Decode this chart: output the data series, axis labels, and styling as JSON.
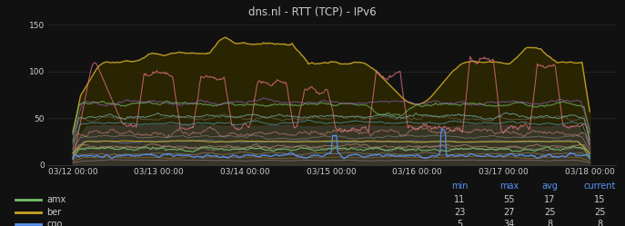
{
  "title": "dns.nl - RTT (TCP) - IPv6",
  "background_color": "#111111",
  "plot_bg_color": "#111111",
  "x_labels": [
    "03/12 00:00",
    "03/13 00:00",
    "03/14 00:00",
    "03/15 00:00",
    "03/16 00:00",
    "03/17 00:00",
    "03/18 00:00"
  ],
  "ylim": [
    0,
    150
  ],
  "yticks": [
    0,
    50,
    100,
    150
  ],
  "grid_color": "#2a2a2a",
  "legend_entries": [
    {
      "label": "amx",
      "color": "#73bf69",
      "min": 11,
      "max": 55,
      "avg": 17,
      "current": 15
    },
    {
      "label": "ber",
      "color": "#c8a526",
      "min": 23,
      "max": 27,
      "avg": 25,
      "current": 25
    },
    {
      "label": "cgo",
      "color": "#5794f2",
      "min": 5,
      "max": 34,
      "avg": 8,
      "current": 8
    }
  ],
  "legend_header_color": "#5794f2",
  "text_color": "#cccccc",
  "title_color": "#cccccc",
  "num_points": 800,
  "seed": 7
}
